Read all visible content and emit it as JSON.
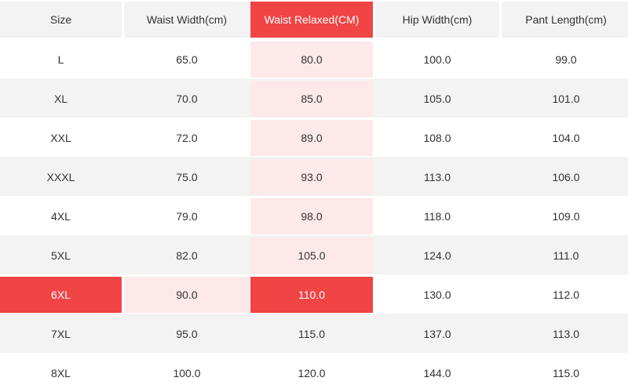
{
  "table": {
    "headers": [
      "Size",
      "Waist Width(cm)",
      "Waist Relaxed(CM)",
      "Hip Width(cm)",
      "Pant Length(cm)"
    ],
    "rows": [
      [
        "L",
        "65.0",
        "80.0",
        "100.0",
        "99.0"
      ],
      [
        "XL",
        "70.0",
        "85.0",
        "105.0",
        "101.0"
      ],
      [
        "XXL",
        "72.0",
        "89.0",
        "108.0",
        "104.0"
      ],
      [
        "XXXL",
        "75.0",
        "93.0",
        "113.0",
        "106.0"
      ],
      [
        "4XL",
        "79.0",
        "98.0",
        "118.0",
        "109.0"
      ],
      [
        "5XL",
        "82.0",
        "105.0",
        "124.0",
        "111.0"
      ],
      [
        "6XL",
        "90.0",
        "110.0",
        "130.0",
        "112.0"
      ],
      [
        "7XL",
        "95.0",
        "115.0",
        "137.0",
        "113.0"
      ],
      [
        "8XL",
        "100.0",
        "120.0",
        "144.0",
        "115.0"
      ]
    ],
    "highlight_color": "#f04445",
    "tint_color": "#fde9e9",
    "stripe_color": "#f3f3f3"
  }
}
